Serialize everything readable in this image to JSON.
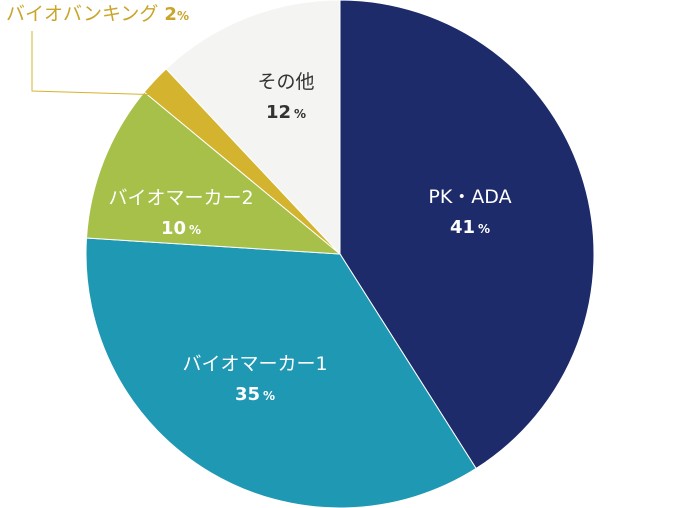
{
  "chart_data": {
    "type": "pie",
    "title": "",
    "start_angle_deg": 0,
    "direction": "clockwise",
    "unit": "%",
    "slices": [
      {
        "name": "PK・ADA",
        "value": 41,
        "color": "#1d2b6b",
        "label_color": "#ffffff",
        "label": "inside"
      },
      {
        "name": "バイオマーカー1",
        "value": 35,
        "color": "#1e98b3",
        "label_color": "#ffffff",
        "label": "inside"
      },
      {
        "name": "バイオマーカー2",
        "value": 10,
        "color": "#a6c04a",
        "label_color": "#ffffff",
        "label": "inside"
      },
      {
        "name": "バイオバンキング",
        "value": 2,
        "color": "#d4b42f",
        "label_color": "#c9a52a",
        "label": "outside"
      },
      {
        "name": "その他",
        "value": 12,
        "color": "#f4f4f2",
        "label_color": "#333333",
        "label": "inside"
      }
    ]
  }
}
